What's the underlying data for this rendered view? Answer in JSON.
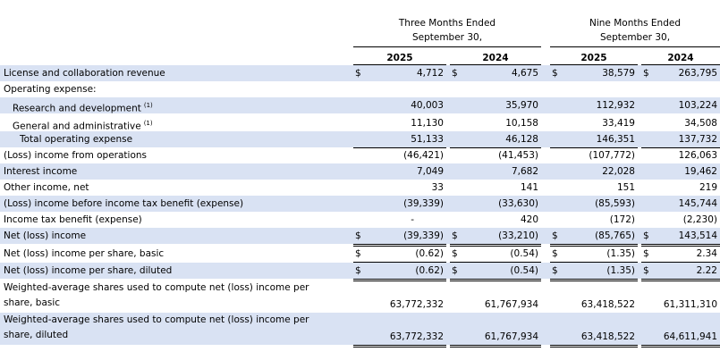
{
  "header": {
    "group1_line1": "Three Months Ended",
    "group1_line2": "September 30,",
    "group2_line1": "Nine Months Ended",
    "group2_line2": "September 30,",
    "years": [
      "2025",
      "2024",
      "2025",
      "2024"
    ],
    "currency_symbol": "$"
  },
  "rows": [
    {
      "label": "License and collaboration revenue",
      "values": [
        "4,712",
        "4,675",
        "38,579",
        "263,795"
      ]
    },
    {
      "label": "Operating expense:",
      "values": [
        "",
        "",
        "",
        ""
      ]
    },
    {
      "label": "Research and development",
      "footnote": "(1)",
      "values": [
        "40,003",
        "35,970",
        "112,932",
        "103,224"
      ]
    },
    {
      "label": "General and administrative",
      "footnote": "(1)",
      "values": [
        "11,130",
        "10,158",
        "33,419",
        "34,508"
      ]
    },
    {
      "label": "Total operating expense",
      "values": [
        "51,133",
        "46,128",
        "146,351",
        "137,732"
      ]
    },
    {
      "label": "(Loss) income from operations",
      "values": [
        "(46,421)",
        "(41,453)",
        "(107,772)",
        "126,063"
      ]
    },
    {
      "label": "Interest income",
      "values": [
        "7,049",
        "7,682",
        "22,028",
        "19,462"
      ]
    },
    {
      "label": "Other income, net",
      "values": [
        "33",
        "141",
        "151",
        "219"
      ]
    },
    {
      "label": "(Loss) income before income tax benefit (expense)",
      "values": [
        "(39,339)",
        "(33,630)",
        "(85,593)",
        "145,744"
      ]
    },
    {
      "label": "Income tax benefit (expense)",
      "values": [
        "-",
        "420",
        "(172)",
        "(2,230)"
      ]
    },
    {
      "label": "Net (loss) income",
      "values": [
        "(39,339)",
        "(33,210)",
        "(85,765)",
        "143,514"
      ]
    },
    {
      "label": "Net (loss) income per share, basic",
      "values": [
        "(0.62)",
        "(0.54)",
        "(1.35)",
        "2.34"
      ]
    },
    {
      "label": "Net (loss) income per share, diluted",
      "values": [
        "(0.62)",
        "(0.54)",
        "(1.35)",
        "2.22"
      ]
    },
    {
      "label": "Weighted-average shares used to compute net (loss) income per share, basic",
      "values": [
        "63,772,332",
        "61,767,934",
        "63,418,522",
        "61,311,310"
      ]
    },
    {
      "label": "Weighted-average shares used to compute net (loss) income per share, diluted",
      "values": [
        "63,772,332",
        "61,767,934",
        "63,418,522",
        "64,611,941"
      ]
    }
  ]
}
